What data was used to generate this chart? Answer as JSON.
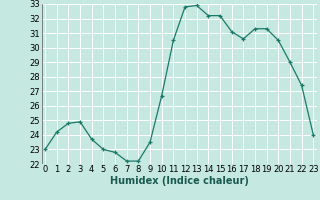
{
  "x": [
    0,
    1,
    2,
    3,
    4,
    5,
    6,
    7,
    8,
    9,
    10,
    11,
    12,
    13,
    14,
    15,
    16,
    17,
    18,
    19,
    20,
    21,
    22,
    23
  ],
  "y": [
    23.0,
    24.2,
    24.8,
    24.9,
    23.7,
    23.0,
    22.8,
    22.2,
    22.2,
    23.5,
    26.7,
    30.5,
    32.8,
    32.9,
    32.2,
    32.2,
    31.1,
    30.6,
    31.3,
    31.3,
    30.5,
    29.0,
    27.4,
    24.0
  ],
  "line_color": "#1a7a6a",
  "bg_color": "#c5e8e0",
  "grid_color": "#b0d8d0",
  "xlabel": "Humidex (Indice chaleur)",
  "ylim": [
    22,
    33
  ],
  "xlim": [
    -0.3,
    23.3
  ],
  "yticks": [
    22,
    23,
    24,
    25,
    26,
    27,
    28,
    29,
    30,
    31,
    32,
    33
  ],
  "xticks": [
    0,
    1,
    2,
    3,
    4,
    5,
    6,
    7,
    8,
    9,
    10,
    11,
    12,
    13,
    14,
    15,
    16,
    17,
    18,
    19,
    20,
    21,
    22,
    23
  ],
  "xlabel_fontsize": 7,
  "tick_fontsize": 6,
  "marker": "+",
  "linewidth": 0.9,
  "markersize": 3.5,
  "markeredgewidth": 0.9
}
